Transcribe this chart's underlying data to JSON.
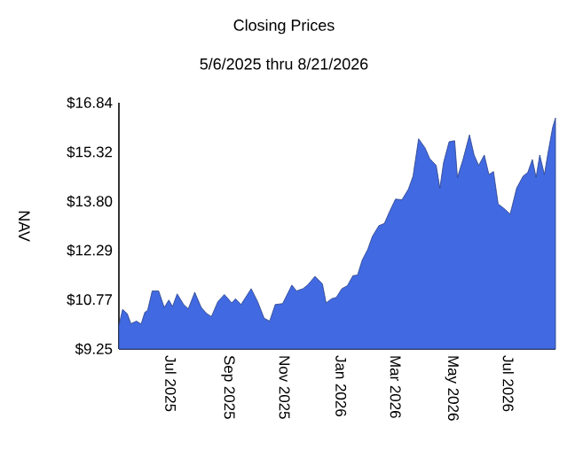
{
  "chart_data": {
    "type": "area",
    "title": "Closing Prices",
    "subtitle": "5/6/2025 thru 8/21/2026",
    "ylabel": "NAV",
    "xlim": [
      "2025-05-06",
      "2026-08-21"
    ],
    "ylim": [
      9.25,
      16.84
    ],
    "yticks": [
      {
        "value": 9.25,
        "label": "$9.25"
      },
      {
        "value": 10.77,
        "label": "$10.77"
      },
      {
        "value": 12.29,
        "label": "$12.29"
      },
      {
        "value": 13.8,
        "label": "$13.80"
      },
      {
        "value": 15.32,
        "label": "$15.32"
      },
      {
        "value": 16.84,
        "label": "$16.84"
      }
    ],
    "xticks": [
      {
        "value": "2025-07-01",
        "label": "Jul 2025"
      },
      {
        "value": "2025-09-01",
        "label": "Sep 2025"
      },
      {
        "value": "2025-11-01",
        "label": "Nov 2025"
      },
      {
        "value": "2026-01-01",
        "label": "Jan 2026"
      },
      {
        "value": "2026-03-01",
        "label": "Mar 2026"
      },
      {
        "value": "2026-05-01",
        "label": "May 2026"
      },
      {
        "value": "2026-07-01",
        "label": "Jul 2026"
      }
    ],
    "grid": false,
    "x": [
      "2025-05-06",
      "2025-05-10",
      "2025-05-15",
      "2025-05-19",
      "2025-05-25",
      "2025-05-30",
      "2025-06-03",
      "2025-06-06",
      "2025-06-11",
      "2025-06-18",
      "2025-06-24",
      "2025-06-29",
      "2025-07-03",
      "2025-07-08",
      "2025-07-15",
      "2025-07-20",
      "2025-07-27",
      "2025-08-03",
      "2025-08-09",
      "2025-08-14",
      "2025-08-21",
      "2025-08-28",
      "2025-09-05",
      "2025-09-09",
      "2025-09-15",
      "2025-09-26",
      "2025-10-03",
      "2025-10-10",
      "2025-10-16",
      "2025-10-22",
      "2025-10-30",
      "2025-11-09",
      "2025-11-14",
      "2025-11-21",
      "2025-11-26",
      "2025-12-04",
      "2025-12-12",
      "2025-12-16",
      "2025-12-22",
      "2025-12-27",
      "2026-01-02",
      "2026-01-08",
      "2026-01-14",
      "2026-01-19",
      "2026-01-24",
      "2026-01-30",
      "2026-02-04",
      "2026-02-11",
      "2026-02-17",
      "2026-02-22",
      "2026-03-01",
      "2026-03-08",
      "2026-03-15",
      "2026-03-20",
      "2026-03-26",
      "2026-04-02",
      "2026-04-07",
      "2026-04-14",
      "2026-04-18",
      "2026-04-22",
      "2026-04-28",
      "2026-05-04",
      "2026-05-07",
      "2026-05-13",
      "2026-05-20",
      "2026-05-25",
      "2026-05-30",
      "2026-06-05",
      "2026-06-10",
      "2026-06-15",
      "2026-06-20",
      "2026-06-26",
      "2026-07-03",
      "2026-07-10",
      "2026-07-17",
      "2026-07-22",
      "2026-07-27",
      "2026-07-31",
      "2026-08-04",
      "2026-08-09",
      "2026-08-13",
      "2026-08-18",
      "2026-08-21"
    ],
    "series": [
      {
        "color": "#4169e1",
        "values": [
          9.98,
          10.47,
          10.34,
          10.03,
          10.11,
          10.02,
          10.38,
          10.44,
          11.04,
          11.04,
          10.53,
          10.76,
          10.56,
          10.95,
          10.62,
          10.49,
          11.0,
          10.53,
          10.34,
          10.25,
          10.71,
          10.93,
          10.67,
          10.8,
          10.62,
          11.11,
          10.71,
          10.2,
          10.11,
          10.62,
          10.65,
          11.22,
          11.04,
          11.11,
          11.22,
          11.49,
          11.26,
          10.67,
          10.8,
          10.84,
          11.11,
          11.2,
          11.51,
          11.53,
          11.99,
          12.32,
          12.72,
          13.05,
          13.12,
          13.45,
          13.87,
          13.85,
          14.18,
          14.58,
          15.73,
          15.45,
          15.12,
          14.91,
          14.21,
          15.0,
          15.64,
          15.67,
          14.54,
          15.09,
          15.85,
          15.23,
          14.91,
          15.23,
          14.63,
          14.72,
          13.72,
          13.59,
          13.41,
          14.21,
          14.58,
          14.69,
          15.09,
          14.54,
          15.23,
          14.63,
          15.31,
          16.09,
          16.37
        ]
      }
    ]
  }
}
